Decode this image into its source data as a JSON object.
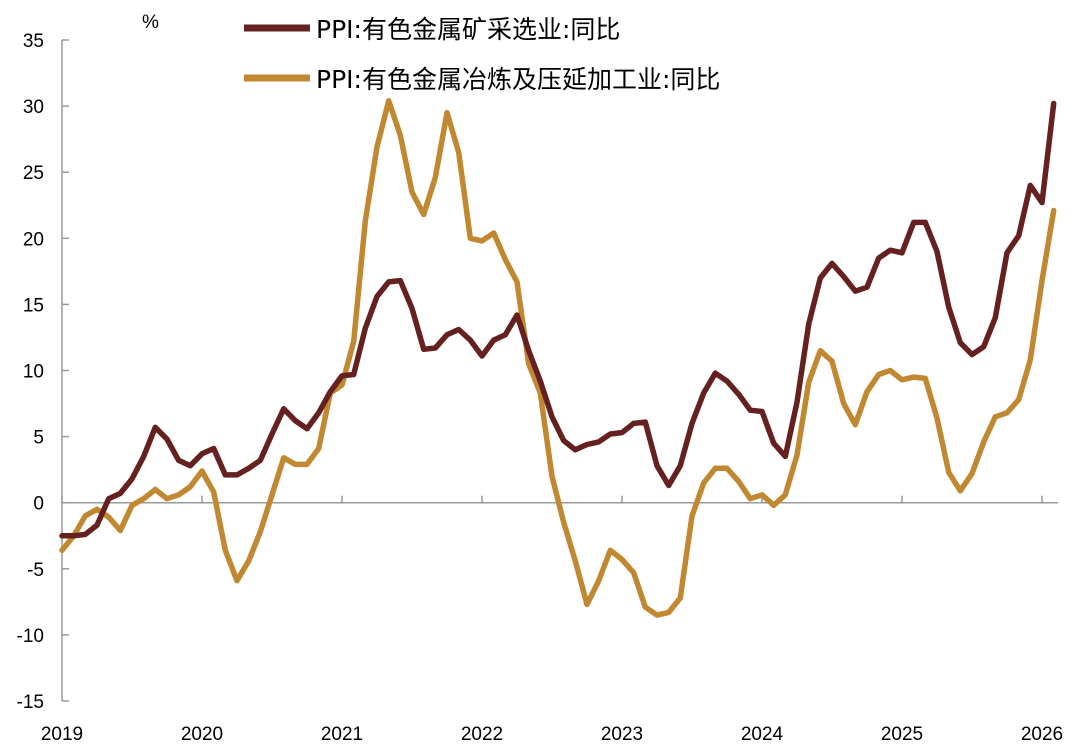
{
  "chart_data": {
    "type": "line",
    "title": "",
    "ylabel": "%",
    "xlabel": "",
    "ylim": [
      -15,
      35
    ],
    "yticks": [
      -15,
      -10,
      -5,
      0,
      5,
      10,
      15,
      20,
      25,
      30,
      35
    ],
    "xticks": [
      "2019",
      "2020",
      "2021",
      "2022",
      "2023",
      "2024",
      "2025",
      "2026"
    ],
    "x_start": "2019-01",
    "x_end": "2026-02",
    "frequency": "monthly",
    "grid": false,
    "legend_position": "top",
    "series": [
      {
        "name": "PPI:有色金属矿采选业:同比",
        "color": "#65211F",
        "values": [
          -2.5,
          -2.5,
          -2.4,
          -1.7,
          0.3,
          0.7,
          1.8,
          3.5,
          5.7,
          4.8,
          3.2,
          2.8,
          3.7,
          4.1,
          2.1,
          2.1,
          2.6,
          3.2,
          5.2,
          7.1,
          6.2,
          5.6,
          6.8,
          8.4,
          9.6,
          9.7,
          13.2,
          15.6,
          16.7,
          16.8,
          14.7,
          11.6,
          11.7,
          12.7,
          13.1,
          12.3,
          11.1,
          12.3,
          12.7,
          14.2,
          11.5,
          9.2,
          6.5,
          4.7,
          4.0,
          4.4,
          4.6,
          5.2,
          5.3,
          6.0,
          6.1,
          2.8,
          1.3,
          2.8,
          6.0,
          8.3,
          9.8,
          9.2,
          8.2,
          7.0,
          6.9,
          4.5,
          3.5,
          7.6,
          13.5,
          17.0,
          18.1,
          17.1,
          16.0,
          16.3,
          18.5,
          19.1,
          18.9,
          21.2,
          21.2,
          19.0,
          14.8,
          12.1,
          11.2,
          11.8,
          14.0,
          18.9,
          20.2,
          24.0,
          22.7,
          30.2
        ]
      },
      {
        "name": "PPI:有色金属冶炼及压延加工业:同比",
        "color": "#C18832",
        "values": [
          -3.6,
          -2.5,
          -1.0,
          -0.5,
          -1.1,
          -2.1,
          -0.2,
          0.3,
          1.0,
          0.3,
          0.6,
          1.2,
          2.4,
          0.8,
          -3.6,
          -5.9,
          -4.4,
          -2.2,
          0.6,
          3.4,
          2.9,
          2.9,
          4.1,
          8.3,
          8.9,
          12.2,
          21.3,
          26.9,
          30.4,
          27.8,
          23.5,
          21.8,
          24.6,
          29.5,
          26.5,
          20.0,
          19.8,
          20.4,
          18.4,
          16.7,
          10.5,
          8.3,
          2.0,
          -1.5,
          -4.4,
          -7.7,
          -5.9,
          -3.6,
          -4.3,
          -5.3,
          -7.9,
          -8.5,
          -8.3,
          -7.2,
          -1.0,
          1.5,
          2.6,
          2.6,
          1.6,
          0.3,
          0.6,
          -0.2,
          0.6,
          3.6,
          9.1,
          11.5,
          10.7,
          7.5,
          5.9,
          8.4,
          9.7,
          10.0,
          9.3,
          9.5,
          9.4,
          6.4,
          2.3,
          0.9,
          2.2,
          4.6,
          6.5,
          6.8,
          7.8,
          10.8,
          16.8,
          22.1
        ]
      }
    ]
  }
}
